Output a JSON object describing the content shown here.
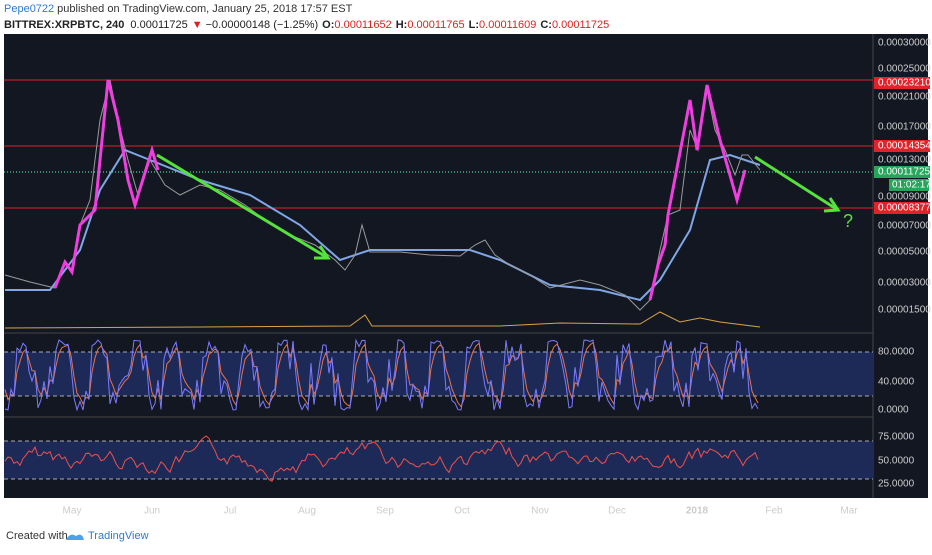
{
  "header": {
    "author": "Pepe0722",
    "published": "published on TradingView.com, January 25, 2018 17:57 EST"
  },
  "symbol": {
    "name": "BITTREX:XRPBTC, 240",
    "last": "0.00011725",
    "arrow": "▼",
    "change": "−0.00000148 (−1.25%)",
    "o_label": "O:",
    "o": "0.00011652",
    "h_label": "H:",
    "h": "0.00011765",
    "l_label": "L:",
    "l": "0.00011609",
    "c_label": "C:",
    "c": "0.00011725"
  },
  "price_axis": [
    "0.00030000",
    "0.00025000",
    "0.00021000",
    "0.00017000",
    "0.00013000",
    "0.00009000",
    "0.00007000",
    "0.00005000",
    "0.00003000",
    "0.00001500"
  ],
  "price_tags": {
    "resistance_high": "0.00023210",
    "resistance_mid": "0.00014354",
    "last": "0.00011725",
    "countdown": "01:02:17",
    "support": "0.00008377"
  },
  "annotation": "?",
  "stoch_axis": [
    "80.0000",
    "40.0000",
    "0.0000"
  ],
  "rsi_axis": [
    "75.0000",
    "50.0000",
    "25.0000"
  ],
  "time_axis": [
    "May",
    "Jun",
    "Jul",
    "Aug",
    "Sep",
    "Oct",
    "Nov",
    "Dec",
    "2018",
    "Feb",
    "Mar"
  ],
  "footer": {
    "created": "Created with",
    "brand": "TradingView"
  }
}
